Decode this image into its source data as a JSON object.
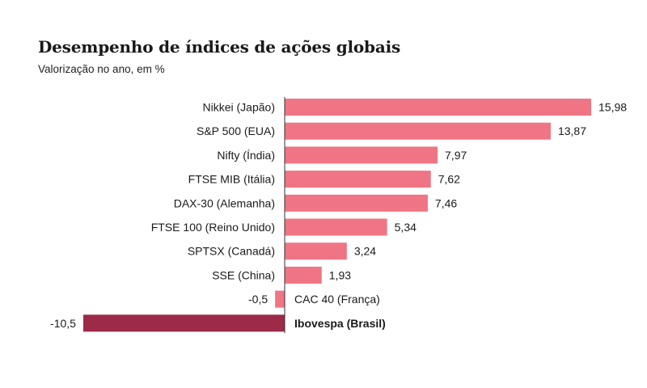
{
  "title": "Desempenho de índices de ações globais",
  "subtitle": "Valorização no ano, em %",
  "colors": {
    "positive": "#f07584",
    "negative": "#f07584",
    "highlight": "#9d2a48",
    "axis": "#333333"
  },
  "chart_data": {
    "type": "bar",
    "orientation": "horizontal",
    "title": "Desempenho de índices de ações globais",
    "subtitle": "Valorização no ano, em %",
    "categories": [
      "Nikkei (Japão)",
      "S&P 500 (EUA)",
      "Nifty (Índia)",
      "FTSE MIB (Itália)",
      "DAX-30 (Alemanha)",
      "FTSE 100 (Reino Unido)",
      "SPTSX (Canadá)",
      "SSE (China)",
      "CAC 40 (França)",
      "Ibovespa (Brasil)"
    ],
    "values": [
      15.98,
      13.87,
      7.97,
      7.62,
      7.46,
      5.34,
      3.24,
      1.93,
      -0.5,
      -10.5
    ],
    "value_labels": [
      "15,98",
      "13,87",
      "7,97",
      "7,62",
      "7,46",
      "5,34",
      "3,24",
      "1,93",
      "-0,5",
      "-10,5"
    ],
    "highlight": "Ibovespa (Brasil)",
    "xlim": [
      -10.5,
      15.98
    ],
    "grid": false,
    "legend": "none"
  }
}
